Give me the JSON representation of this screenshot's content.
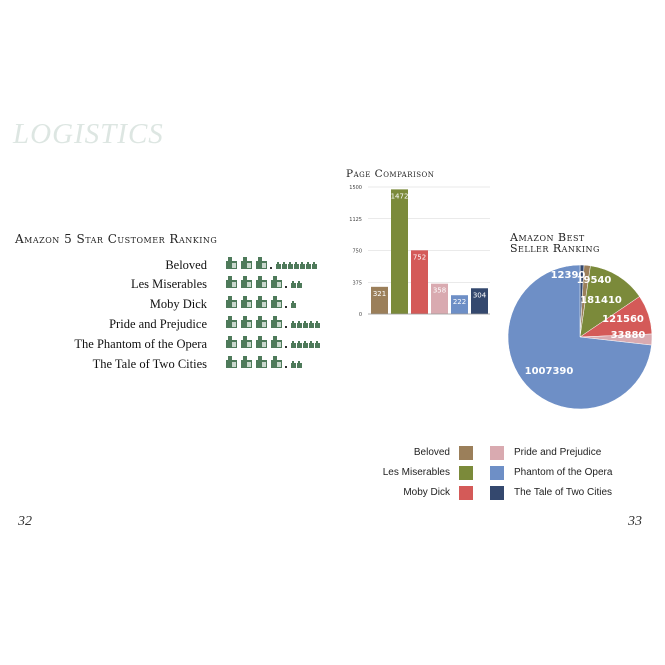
{
  "page": {
    "title": "LOGISTICS",
    "left_page_number": "32",
    "right_page_number": "33"
  },
  "colors": {
    "beloved": "#9b7f5a",
    "les_miserables": "#7b8a3a",
    "moby_dick": "#d45a58",
    "pride_and_prejudice": "#d9aab0",
    "phantom_of_the_opera": "#6e8fc6",
    "tale_of_two_cities": "#34486e",
    "stars_icon": "#4e7a5a",
    "title_faint": "#dde6e2"
  },
  "chart_data": [
    {
      "type": "table",
      "title": "Amazon 5 Star Customer Ranking",
      "icon": "rating-block-icon",
      "rows": [
        {
          "label": "Beloved",
          "large": 3,
          "small": 7
        },
        {
          "label": "Les Miserables",
          "large": 4,
          "small": 2
        },
        {
          "label": "Moby Dick",
          "large": 4,
          "small": 1
        },
        {
          "label": "Pride and Prejudice",
          "large": 4,
          "small": 5
        },
        {
          "label": "The Phantom of the Opera",
          "large": 4,
          "small": 5
        },
        {
          "label": "The Tale of Two Cities",
          "large": 4,
          "small": 2
        }
      ]
    },
    {
      "type": "bar",
      "title": "Page Comparison",
      "categories": [
        "Beloved",
        "Les Miserables",
        "Moby Dick",
        "Pride and Prejudice",
        "Phantom of the Opera",
        "The Tale of Two Cities"
      ],
      "values": [
        321,
        1472,
        752,
        358,
        222,
        304
      ],
      "yticks": [
        0,
        375,
        750,
        1125,
        1500
      ],
      "ylim": [
        0,
        1500
      ],
      "grid": true
    },
    {
      "type": "pie",
      "title_lines": [
        "Amazon Best",
        "Seller Ranking"
      ],
      "categories": [
        "Beloved",
        "Les Miserables",
        "Moby Dick",
        "Pride and Prejudice",
        "Phantom of the Opera",
        "The Tale of Two Cities"
      ],
      "values": [
        19540,
        181410,
        121560,
        33880,
        1007390,
        12390
      ]
    }
  ],
  "legend": [
    {
      "label": "Beloved",
      "color": "#9b7f5a"
    },
    {
      "label": "Les Miserables",
      "color": "#7b8a3a"
    },
    {
      "label": "Moby Dick",
      "color": "#d45a58"
    },
    {
      "label": "Pride and Prejudice",
      "color": "#d9aab0"
    },
    {
      "label": "Phantom of the Opera",
      "color": "#6e8fc6"
    },
    {
      "label": "The Tale of Two Cities",
      "color": "#34486e"
    }
  ]
}
